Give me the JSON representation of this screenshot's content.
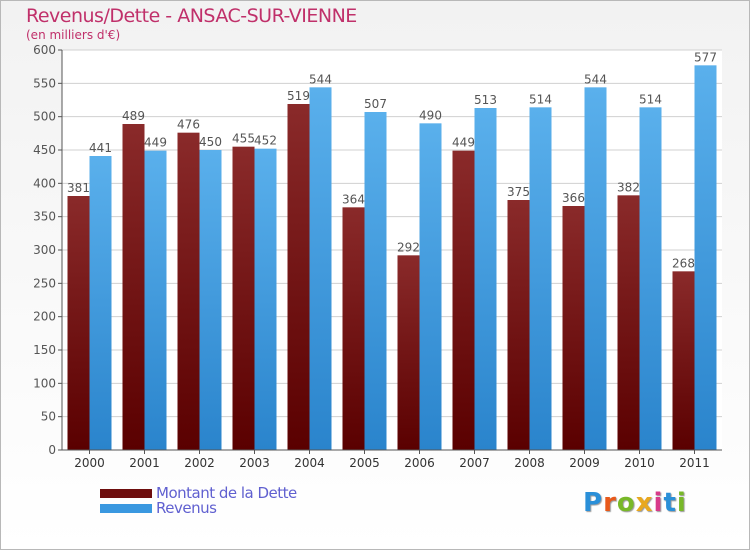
{
  "title": "Revenus/Dette - ANSAC-SUR-VIENNE",
  "subtitle": "(en milliers d'€)",
  "colors": {
    "debt": "#7a1414",
    "revenue": "#3a98e0",
    "axis": "#555555",
    "grid": "#d0d0d0",
    "label": "#555555"
  },
  "chart_data": {
    "type": "bar",
    "categories": [
      "2000",
      "2001",
      "2002",
      "2003",
      "2004",
      "2005",
      "2006",
      "2007",
      "2008",
      "2009",
      "2010",
      "2011"
    ],
    "series": [
      {
        "name": "Montant de la Dette",
        "values": [
          381,
          489,
          476,
          455,
          519,
          364,
          292,
          449,
          375,
          366,
          382,
          268
        ]
      },
      {
        "name": "Revenus",
        "values": [
          441,
          449,
          450,
          452,
          544,
          507,
          490,
          513,
          514,
          544,
          514,
          577
        ]
      }
    ],
    "ylim": [
      0,
      600
    ],
    "yticks": [
      0,
      50,
      100,
      150,
      200,
      250,
      300,
      350,
      400,
      450,
      500,
      550,
      600
    ],
    "grid": true,
    "legend": "bottom-left",
    "data_labels": true
  },
  "legend": [
    {
      "label": "Montant de la Dette",
      "color": "#6e0e0e"
    },
    {
      "label": "Revenus",
      "color": "#3a98e0"
    }
  ],
  "logo": {
    "text": "Proxiti"
  }
}
